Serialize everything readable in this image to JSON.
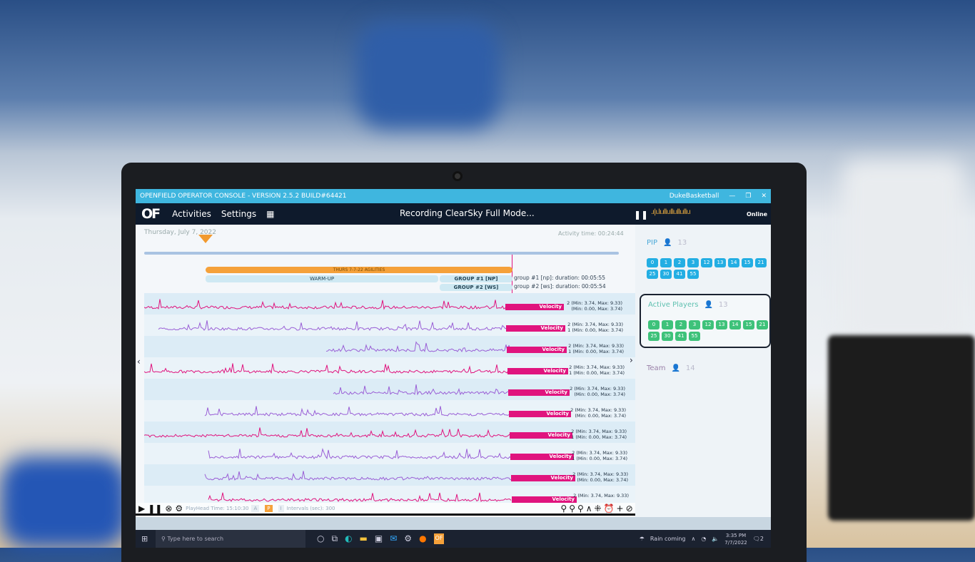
{
  "window": {
    "title": "OPENFIELD OPERATOR CONSOLE - VERSION 2.5.2 BUILD#64421",
    "account": "DukeBasketball",
    "controls": [
      "—",
      "❐",
      "✕"
    ]
  },
  "nav": {
    "logo": "OF",
    "items": [
      "Activities",
      "Settings"
    ],
    "grid_icon": "grid-icon",
    "status": "Recording ClearSky Full Mode...",
    "pause": "❚❚",
    "meter": ".ı|ı.lı.ıllı.ıllı.ıllı.ıllı.ı",
    "connection": "Online"
  },
  "timeline": {
    "date": "Thursday, July 7, 2022",
    "activity_time": "Activity time: 00:24:44",
    "activity": "THURS 7-7-22 AGILITIES",
    "periods": [
      "WARM-UP",
      "GROUP #1 [NP]",
      "GROUP #2 [WS]"
    ],
    "groups": [
      {
        "name": "group #1 [np]:",
        "duration_label": "duration:",
        "duration": "00:05:55"
      },
      {
        "name": "group #2 [ws]:",
        "duration_label": "duration:",
        "duration": "00:05:54"
      }
    ]
  },
  "colors": {
    "accent": "#3fb6df",
    "nav": "#0e1a2c",
    "velocity": "#e0147e",
    "signal": "#9a5fd6",
    "chip_blue": "#23aee3",
    "chip_green": "#3ec27a",
    "activity": "#f5a13a"
  },
  "rows": [
    {
      "metric": "Velocity",
      "line1": "2 (Min: 3.74, Max: 9.33)",
      "line2": "(Min: 0.00, Max: 3.74)"
    },
    {
      "metric": "Velocity",
      "line1": "2 (Min: 3.74, Max: 9.33)",
      "line2": "1 (Min: 0.00, Max: 3.74)"
    },
    {
      "metric": "Velocity",
      "line1": "2 (Min: 3.74, Max: 9.33)",
      "line2": "1 (Min: 0.00, Max: 3.74)"
    },
    {
      "metric": "Velocity",
      "line1": "2 (Min: 3.74, Max: 9.33)",
      "line2": "1 (Min: 0.00, Max: 3.74)"
    },
    {
      "metric": "Velocity",
      "line1": "2 (Min: 3.74, Max: 9.33)",
      "line2": "(Min: 0.00, Max: 3.74)"
    },
    {
      "metric": "Velocity",
      "line1": "2 (Min: 3.74, Max: 9.33)",
      "line2": "(Min: 0.00, Max: 3.74)"
    },
    {
      "metric": "Velocity",
      "line1": "2 (Min: 3.74, Max: 9.33)",
      "line2": "1 (Min: 0.00, Max: 3.74)"
    },
    {
      "metric": "Velocity",
      "line1": "2 (Min: 3.74, Max: 9.33)",
      "line2": "1 (Min: 0.00, Max: 3.74)"
    },
    {
      "metric": "Velocity",
      "line1": "2 (Min: 3.74, Max: 9.33)",
      "line2": "(Min: 0.00, Max: 3.74)"
    },
    {
      "metric": "Velocity",
      "line1": "2 (Min: 3.74, Max: 9.33)",
      "line2": ""
    }
  ],
  "toolbar": {
    "playhead_label": "PlayHead Time:",
    "playhead_time": "15:10:30",
    "modes": [
      "A",
      "P",
      "I"
    ],
    "intervals_label": "Intervals (sec):",
    "intervals": "300",
    "tools": "⚲⚲⚲∧⁜⏰+⊘i"
  },
  "panels": [
    {
      "title": "PIP",
      "count": "13",
      "color": "chip_blue",
      "players": [
        "0",
        "1",
        "2",
        "3",
        "12",
        "13",
        "14",
        "15",
        "21",
        "25",
        "30",
        "41",
        "55"
      ]
    },
    {
      "title": "Active Players",
      "count": "13",
      "color": "chip_green",
      "players": [
        "0",
        "1",
        "2",
        "3",
        "12",
        "13",
        "14",
        "15",
        "21",
        "25",
        "30",
        "41",
        "55"
      ]
    },
    {
      "title": "Team",
      "count": "14",
      "players": []
    }
  ],
  "taskbar": {
    "search_placeholder": "Type here to search",
    "weather": "Rain coming",
    "time": "3:35 PM",
    "date": "7/7/2022",
    "notifications": "2"
  }
}
